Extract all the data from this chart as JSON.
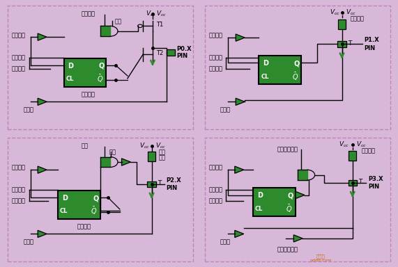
{
  "bg_color": "#d8b8d8",
  "green": "#2d8b2d",
  "dark": "#000000",
  "white": "#ffffff",
  "panels": [
    "P0",
    "P1",
    "P2",
    "P3"
  ],
  "figsize": [
    5.71,
    3.84
  ],
  "dpi": 100
}
